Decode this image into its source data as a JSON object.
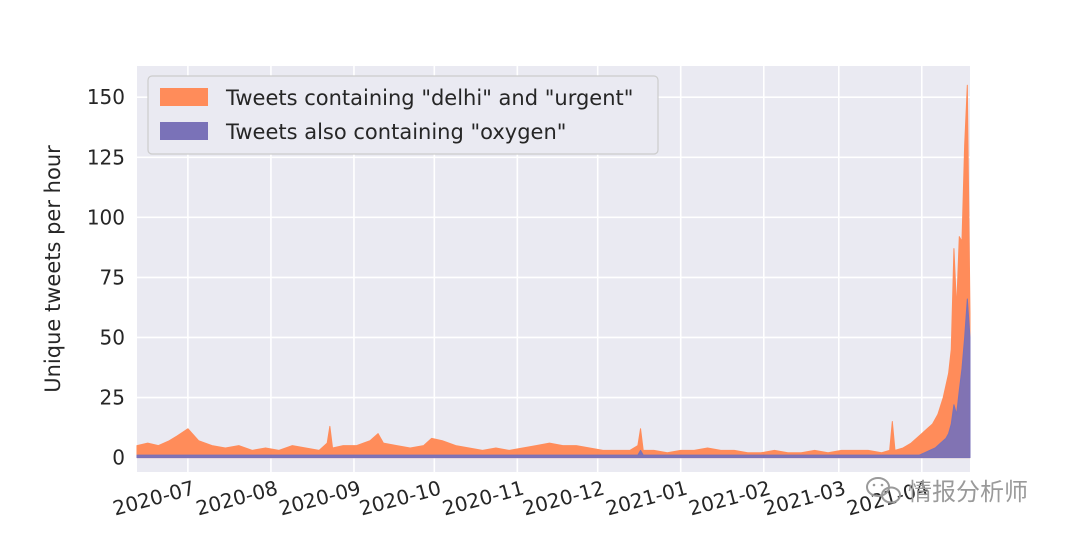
{
  "chart_data": {
    "type": "area",
    "title": "",
    "xlabel": "",
    "ylabel": "Unique tweets per hour",
    "ylim": [
      -6,
      163
    ],
    "xlim": [
      "2020-06-12",
      "2021-04-19"
    ],
    "yticks": [
      0,
      25,
      50,
      75,
      100,
      125,
      150
    ],
    "xticks": [
      "2020-07",
      "2020-08",
      "2020-09",
      "2020-10",
      "2020-11",
      "2020-12",
      "2021-01",
      "2021-02",
      "2021-03",
      "2021-04"
    ],
    "xtick_dates": [
      "2020-07-01",
      "2020-08-01",
      "2020-09-01",
      "2020-10-01",
      "2020-11-01",
      "2020-12-01",
      "2021-01-01",
      "2021-02-01",
      "2021-03-01",
      "2021-04-01"
    ],
    "grid": true,
    "legend_position": "top-left",
    "series": [
      {
        "name": "Tweets containing \"delhi\" and \"urgent\"",
        "color": "#ff8c5a",
        "x": [
          "2020-06-12",
          "2020-06-16",
          "2020-06-20",
          "2020-06-24",
          "2020-06-27",
          "2020-07-01",
          "2020-07-05",
          "2020-07-10",
          "2020-07-15",
          "2020-07-20",
          "2020-07-25",
          "2020-07-30",
          "2020-08-04",
          "2020-08-09",
          "2020-08-14",
          "2020-08-19",
          "2020-08-22",
          "2020-08-23",
          "2020-08-24",
          "2020-08-28",
          "2020-09-02",
          "2020-09-07",
          "2020-09-10",
          "2020-09-12",
          "2020-09-17",
          "2020-09-22",
          "2020-09-27",
          "2020-09-30",
          "2020-10-04",
          "2020-10-09",
          "2020-10-14",
          "2020-10-19",
          "2020-10-24",
          "2020-10-29",
          "2020-11-03",
          "2020-11-08",
          "2020-11-13",
          "2020-11-18",
          "2020-11-23",
          "2020-11-28",
          "2020-12-03",
          "2020-12-08",
          "2020-12-13",
          "2020-12-16",
          "2020-12-17",
          "2020-12-18",
          "2020-12-22",
          "2020-12-27",
          "2021-01-01",
          "2021-01-06",
          "2021-01-11",
          "2021-01-16",
          "2021-01-21",
          "2021-01-26",
          "2021-01-31",
          "2021-02-05",
          "2021-02-10",
          "2021-02-15",
          "2021-02-20",
          "2021-02-25",
          "2021-03-02",
          "2021-03-07",
          "2021-03-12",
          "2021-03-17",
          "2021-03-20",
          "2021-03-21",
          "2021-03-22",
          "2021-03-25",
          "2021-03-28",
          "2021-03-30",
          "2021-04-01",
          "2021-04-03",
          "2021-04-05",
          "2021-04-07",
          "2021-04-09",
          "2021-04-11",
          "2021-04-12",
          "2021-04-13",
          "2021-04-14",
          "2021-04-15",
          "2021-04-16",
          "2021-04-17",
          "2021-04-18",
          "2021-04-19"
        ],
        "values": [
          5,
          6,
          5,
          7,
          9,
          12,
          7,
          5,
          4,
          5,
          3,
          4,
          3,
          5,
          4,
          3,
          6,
          13,
          4,
          5,
          5,
          7,
          10,
          6,
          5,
          4,
          5,
          8,
          7,
          5,
          4,
          3,
          4,
          3,
          4,
          5,
          6,
          5,
          5,
          4,
          3,
          3,
          3,
          5,
          12,
          3,
          3,
          2,
          3,
          3,
          4,
          3,
          3,
          2,
          2,
          3,
          2,
          2,
          3,
          2,
          3,
          3,
          3,
          2,
          3,
          15,
          3,
          4,
          6,
          8,
          10,
          12,
          14,
          18,
          25,
          35,
          45,
          87,
          62,
          92,
          90,
          130,
          155,
          60
        ]
      },
      {
        "name": "Tweets also containing \"oxygen\"",
        "color": "#7a72b8",
        "x": [
          "2020-06-12",
          "2020-12-16",
          "2020-12-17",
          "2020-12-18",
          "2021-03-31",
          "2021-04-02",
          "2021-04-04",
          "2021-04-06",
          "2021-04-08",
          "2021-04-10",
          "2021-04-11",
          "2021-04-12",
          "2021-04-13",
          "2021-04-14",
          "2021-04-15",
          "2021-04-16",
          "2021-04-17",
          "2021-04-18",
          "2021-04-19"
        ],
        "values": [
          1,
          1,
          3,
          1,
          1,
          2,
          3,
          4,
          6,
          8,
          10,
          14,
          22,
          18,
          28,
          37,
          50,
          66,
          50
        ]
      }
    ]
  },
  "watermark": {
    "icon": "wechat-icon",
    "text": "情报分析师"
  }
}
